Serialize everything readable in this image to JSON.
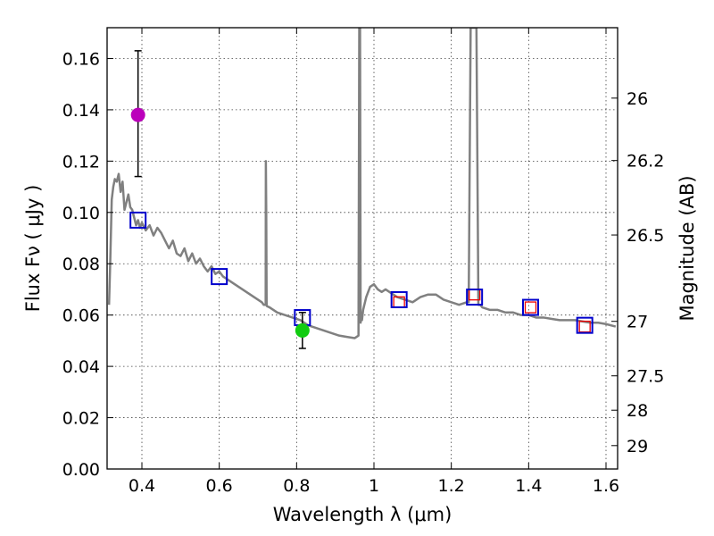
{
  "chart_data": {
    "type": "line",
    "xlabel": "Wavelength  λ (μm)",
    "ylabel": "Flux  Fν  ( μJy )",
    "y2label": "Magnitude (AB)",
    "xlim": [
      0.31,
      1.63
    ],
    "ylim": [
      0.0,
      0.172
    ],
    "grid": true,
    "x_ticks": [
      0.4,
      0.6,
      0.8,
      1.0,
      1.2,
      1.4,
      1.6
    ],
    "x_tick_labels": [
      "0.4",
      "0.6",
      "0.8",
      "1",
      "1.2",
      "1.4",
      "1.6"
    ],
    "y_ticks": [
      0.0,
      0.02,
      0.04,
      0.06,
      0.08,
      0.1,
      0.12,
      0.14,
      0.16
    ],
    "y_tick_labels": [
      "0.00",
      "0.02",
      "0.04",
      "0.06",
      "0.08",
      "0.10",
      "0.12",
      "0.14",
      "0.16"
    ],
    "mag_ticks": [
      26,
      26.2,
      26.5,
      27,
      27.5,
      28,
      29
    ],
    "mag_tick_labels": [
      "26",
      "26.2",
      "26.5",
      "27",
      "27.5",
      "28",
      "29"
    ],
    "spectrum": {
      "name": "model spectrum",
      "color": "#808080",
      "x": [
        0.315,
        0.318,
        0.322,
        0.326,
        0.33,
        0.335,
        0.34,
        0.345,
        0.35,
        0.355,
        0.36,
        0.365,
        0.37,
        0.375,
        0.38,
        0.385,
        0.39,
        0.395,
        0.4,
        0.41,
        0.42,
        0.43,
        0.44,
        0.45,
        0.46,
        0.47,
        0.48,
        0.49,
        0.5,
        0.51,
        0.52,
        0.53,
        0.54,
        0.55,
        0.56,
        0.57,
        0.58,
        0.59,
        0.6,
        0.61,
        0.62,
        0.63,
        0.64,
        0.65,
        0.66,
        0.67,
        0.68,
        0.69,
        0.7,
        0.71,
        0.715,
        0.72,
        0.7205,
        0.7215,
        0.7225,
        0.723,
        0.73,
        0.75,
        0.77,
        0.79,
        0.81,
        0.83,
        0.85,
        0.87,
        0.89,
        0.91,
        0.93,
        0.95,
        0.96,
        0.962,
        0.964,
        0.9655,
        0.967,
        0.969,
        0.972,
        0.98,
        0.99,
        1.0,
        1.01,
        1.02,
        1.03,
        1.04,
        1.05,
        1.06,
        1.08,
        1.1,
        1.12,
        1.14,
        1.16,
        1.18,
        1.2,
        1.22,
        1.24,
        1.245,
        1.25,
        1.255,
        1.265,
        1.27,
        1.275,
        1.28,
        1.3,
        1.32,
        1.34,
        1.36,
        1.38,
        1.4,
        1.42,
        1.44,
        1.46,
        1.48,
        1.5,
        1.52,
        1.54,
        1.56,
        1.58,
        1.6,
        1.625
      ],
      "y": [
        0.064,
        0.08,
        0.105,
        0.11,
        0.113,
        0.112,
        0.115,
        0.108,
        0.112,
        0.101,
        0.104,
        0.107,
        0.102,
        0.101,
        0.098,
        0.095,
        0.097,
        0.094,
        0.096,
        0.093,
        0.095,
        0.091,
        0.094,
        0.092,
        0.089,
        0.086,
        0.089,
        0.084,
        0.083,
        0.086,
        0.081,
        0.084,
        0.08,
        0.082,
        0.079,
        0.077,
        0.079,
        0.076,
        0.077,
        0.075,
        0.074,
        0.073,
        0.072,
        0.071,
        0.07,
        0.069,
        0.068,
        0.067,
        0.066,
        0.065,
        0.064,
        0.064,
        0.12,
        0.1,
        0.064,
        0.0635,
        0.063,
        0.061,
        0.06,
        0.059,
        0.058,
        0.056,
        0.055,
        0.054,
        0.053,
        0.052,
        0.0515,
        0.051,
        0.052,
        0.172,
        0.172,
        0.057,
        0.061,
        0.058,
        0.062,
        0.067,
        0.071,
        0.072,
        0.07,
        0.069,
        0.07,
        0.069,
        0.068,
        0.067,
        0.066,
        0.065,
        0.067,
        0.068,
        0.068,
        0.066,
        0.065,
        0.064,
        0.065,
        0.065,
        0.172,
        0.172,
        0.172,
        0.064,
        0.064,
        0.063,
        0.062,
        0.062,
        0.061,
        0.061,
        0.06,
        0.06,
        0.059,
        0.059,
        0.0585,
        0.058,
        0.058,
        0.058,
        0.0575,
        0.057,
        0.057,
        0.0565,
        0.0555
      ]
    },
    "model_photometry": {
      "name": "model photometry",
      "marker": "square",
      "color": "#0000cc",
      "x": [
        0.39,
        0.6,
        0.815,
        1.065,
        1.26,
        1.405,
        1.545
      ],
      "y": [
        0.097,
        0.075,
        0.059,
        0.066,
        0.067,
        0.063,
        0.056
      ]
    },
    "observed_squares": {
      "name": "observed photometry",
      "marker": "square",
      "color": "#ee0000",
      "x": [
        1.065,
        1.26,
        1.405,
        1.545
      ],
      "y": [
        0.065,
        0.068,
        0.063,
        0.0555
      ]
    },
    "detections": [
      {
        "name": "magenta point",
        "x": 0.39,
        "y": 0.138,
        "yerr_low": 0.114,
        "yerr_high": 0.163,
        "color": "#bb00bb"
      },
      {
        "name": "green point",
        "x": 0.815,
        "y": 0.054,
        "yerr_low": 0.047,
        "yerr_high": 0.061,
        "color": "#11cc11"
      }
    ]
  }
}
